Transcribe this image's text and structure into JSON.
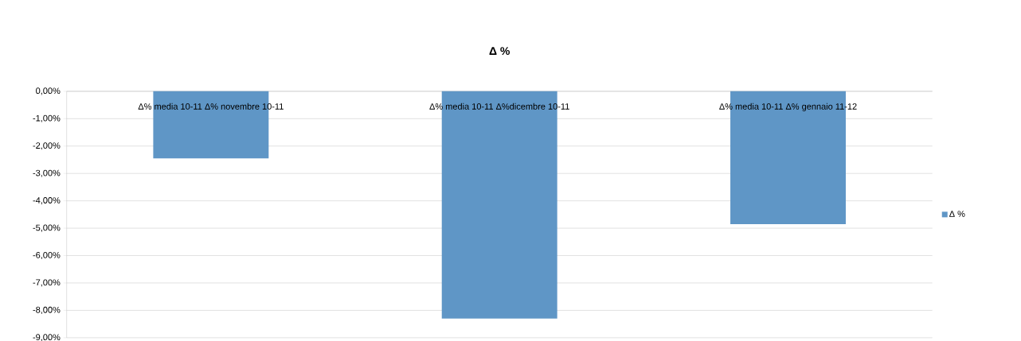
{
  "chart_data": {
    "type": "bar",
    "title": "Δ %",
    "categories": [
      "Δ% media 10-11 Δ% novembre 10-11",
      "Δ% media 10-11 Δ%dicembre 10-11",
      "Δ% media 10-11 Δ% gennaio 11-12"
    ],
    "series": [
      {
        "name": "Δ %",
        "color": "#5f96c6",
        "values": [
          -2.45,
          -8.3,
          -4.85
        ]
      }
    ],
    "ylim": [
      -9,
      0
    ],
    "yticks": [
      {
        "value": 0,
        "label": "0,00%"
      },
      {
        "value": -1,
        "label": "-1,00%"
      },
      {
        "value": -2,
        "label": "-2,00%"
      },
      {
        "value": -3,
        "label": "-3,00%"
      },
      {
        "value": -4,
        "label": "-4,00%"
      },
      {
        "value": -5,
        "label": "-5,00%"
      },
      {
        "value": -6,
        "label": "-6,00%"
      },
      {
        "value": -7,
        "label": "-7,00%"
      },
      {
        "value": -8,
        "label": "-8,00%"
      },
      {
        "value": -9,
        "label": "-9,00%"
      }
    ],
    "grid": "y",
    "legend": "right"
  }
}
